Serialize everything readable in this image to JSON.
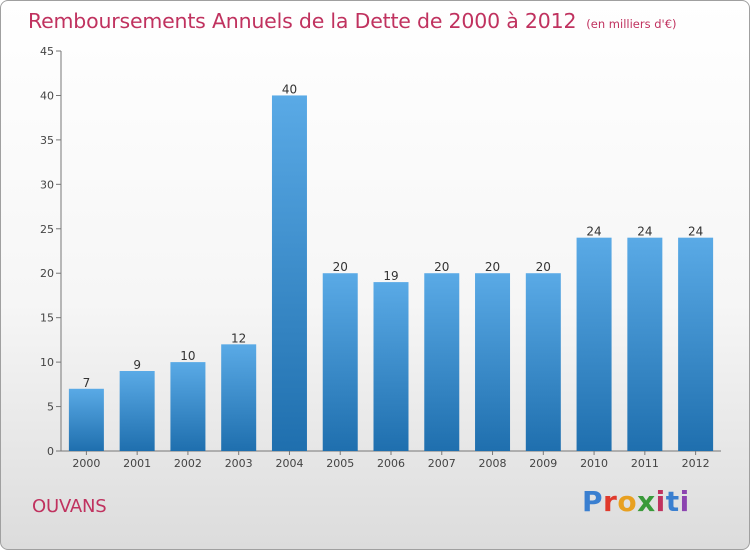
{
  "title": "Remboursements Annuels de la Dette de 2000 à 2012",
  "unit": "(en milliers d'€)",
  "location": "OUVANS",
  "brand": {
    "letters": [
      "P",
      "r",
      "o",
      "x",
      "i",
      "t",
      "i"
    ],
    "colors": [
      "#3a7fd0",
      "#e03a2c",
      "#e8a020",
      "#3a9a3a",
      "#c0325f",
      "#3a7fd0",
      "#8c44b0"
    ]
  },
  "colors": {
    "bar_top": "#5aaae6",
    "bar_bottom": "#1f6fae",
    "title": "#c0325f",
    "axis": "#555555"
  },
  "chart_data": {
    "type": "bar",
    "categories": [
      "2000",
      "2001",
      "2002",
      "2003",
      "2004",
      "2005",
      "2006",
      "2007",
      "2008",
      "2009",
      "2010",
      "2011",
      "2012"
    ],
    "values": [
      7,
      9,
      10,
      12,
      40,
      20,
      19,
      20,
      20,
      20,
      24,
      24,
      24
    ],
    "data_labels": [
      "7",
      "9",
      "10",
      "12",
      "40",
      "20",
      "19",
      "20",
      "20",
      "20",
      "24",
      "24",
      "24"
    ],
    "yticks": [
      "0",
      "5",
      "10",
      "15",
      "20",
      "25",
      "30",
      "35",
      "40",
      "45"
    ],
    "ylim": [
      0,
      45
    ],
    "grid": false
  }
}
